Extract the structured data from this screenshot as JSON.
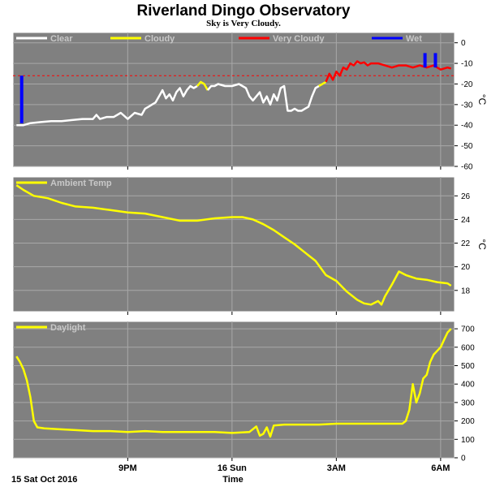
{
  "header": {
    "title": "Riverland Dingo Observatory",
    "subtitle": "Sky is Very Cloudy."
  },
  "footer": {
    "date_label": "15 Sat Oct 2016",
    "time_label": "Time"
  },
  "colors": {
    "plot_bg": "#808080",
    "grid": "#a8a8a8",
    "clear": "#ffffff",
    "cloudy": "#ffff00",
    "very_cloudy": "#ff0000",
    "wet": "#0000ff",
    "line": "#ffff00",
    "threshold": "#ff0000"
  },
  "chart_data": [
    {
      "type": "line",
      "name": "sky",
      "xlabel": "Time",
      "ylabel": "°C",
      "ylim": [
        -60,
        5
      ],
      "yticks": [
        0,
        -10,
        -20,
        -30,
        -40,
        -50,
        -60
      ],
      "xlim": [
        17.7,
        30.4
      ],
      "xticks": [
        {
          "x": 21,
          "label": "9PM"
        },
        {
          "x": 24,
          "label": "16 Sun"
        },
        {
          "x": 27,
          "label": "3AM"
        },
        {
          "x": 30,
          "label": "6AM"
        }
      ],
      "grid": true,
      "legend_position": "top-left",
      "threshold": -16,
      "legend": [
        "Clear",
        "Cloudy",
        "Very Cloudy",
        "Wet"
      ],
      "series": [
        {
          "name": "Clear",
          "color_key": "clear",
          "x": [
            17.8,
            18.0,
            18.2,
            18.5,
            18.8,
            19.1,
            19.4,
            19.7,
            20.0,
            20.1,
            20.2,
            20.4,
            20.6,
            20.8,
            21.0,
            21.2,
            21.4,
            21.5,
            21.6,
            21.7,
            21.8,
            21.9,
            22.0,
            22.1,
            22.2,
            22.3,
            22.4,
            22.5,
            22.6,
            22.7,
            22.8,
            22.9,
            23.0
          ],
          "y": [
            -40,
            -40,
            -39,
            -38.5,
            -38,
            -38,
            -37.5,
            -37,
            -37,
            -35,
            -37,
            -36,
            -36,
            -34,
            -37,
            -34,
            -35,
            -32,
            -31,
            -30,
            -29,
            -26,
            -23,
            -27,
            -25,
            -28,
            -24,
            -22,
            -26,
            -23,
            -21,
            -22,
            -21
          ]
        },
        {
          "name": "Cloudy",
          "color_key": "cloudy",
          "x": [
            23.0,
            23.1,
            23.2,
            23.3
          ],
          "y": [
            -21,
            -19,
            -20,
            -23
          ]
        },
        {
          "name": "Clear",
          "color_key": "clear",
          "x": [
            23.3,
            23.4,
            23.5,
            23.6,
            23.8,
            24.0,
            24.2,
            24.4,
            24.5,
            24.6,
            24.8,
            24.9,
            25.0,
            25.1,
            25.2,
            25.3,
            25.4,
            25.5,
            25.6,
            25.7,
            25.8,
            25.9,
            26.0,
            26.1,
            26.2,
            26.3,
            26.4,
            26.5
          ],
          "y": [
            -23,
            -21,
            -21,
            -20,
            -21,
            -21,
            -20,
            -22,
            -26,
            -28,
            -24,
            -29,
            -26,
            -30,
            -25,
            -28,
            -22,
            -21,
            -33,
            -33,
            -32,
            -33,
            -33,
            -32,
            -31,
            -26,
            -22,
            -21
          ]
        },
        {
          "name": "Cloudy",
          "color_key": "cloudy",
          "x": [
            26.5,
            26.6,
            26.7
          ],
          "y": [
            -21,
            -20,
            -19
          ]
        },
        {
          "name": "Very Cloudy",
          "color_key": "very_cloudy",
          "x": [
            26.7,
            26.8,
            26.9,
            27.0,
            27.1,
            27.2,
            27.3,
            27.4,
            27.5,
            27.6,
            27.7,
            27.8,
            27.9,
            28.0,
            28.2,
            28.4,
            28.6,
            28.8,
            29.0,
            29.2,
            29.4,
            29.6,
            29.8,
            30.0,
            30.2,
            30.3
          ],
          "y": [
            -19,
            -15,
            -18,
            -14,
            -16,
            -12,
            -13,
            -10,
            -11,
            -9,
            -10,
            -9.5,
            -11,
            -10,
            -10,
            -11,
            -12,
            -11,
            -11,
            -12,
            -11,
            -12,
            -11,
            -13,
            -12,
            -12.5
          ]
        },
        {
          "name": "Wet",
          "color_key": "wet",
          "bars": [
            {
              "x": 17.95,
              "y0": -39,
              "y1": -16
            },
            {
              "x": 29.55,
              "y0": -12,
              "y1": -5
            },
            {
              "x": 29.85,
              "y0": -12,
              "y1": -5
            }
          ]
        }
      ]
    },
    {
      "type": "line",
      "name": "ambient",
      "xlabel": "Time",
      "ylabel": "°C",
      "ylim": [
        16.2,
        27.6
      ],
      "yticks": [
        18,
        20,
        22,
        24,
        26
      ],
      "xlim": [
        17.7,
        30.4
      ],
      "xticks": [
        {
          "x": 21,
          "label": "9PM"
        },
        {
          "x": 24,
          "label": "16 Sun"
        },
        {
          "x": 27,
          "label": "3AM"
        },
        {
          "x": 30,
          "label": "6AM"
        }
      ],
      "grid": true,
      "legend_position": "top-left",
      "legend": [
        "Ambient Temp"
      ],
      "series": [
        {
          "name": "Ambient Temp",
          "color_key": "line",
          "x": [
            17.8,
            18.0,
            18.3,
            18.7,
            19.1,
            19.5,
            20.0,
            20.5,
            21.0,
            21.5,
            22.0,
            22.5,
            23.0,
            23.5,
            24.0,
            24.3,
            24.6,
            24.9,
            25.2,
            25.5,
            25.8,
            26.1,
            26.4,
            26.7,
            27.0,
            27.3,
            27.6,
            27.8,
            28.0,
            28.2,
            28.3,
            28.4,
            28.6,
            28.8,
            29.0,
            29.3,
            29.6,
            29.9,
            30.2,
            30.3
          ],
          "y": [
            26.9,
            26.5,
            26.0,
            25.8,
            25.4,
            25.1,
            25.0,
            24.8,
            24.6,
            24.5,
            24.2,
            23.9,
            23.9,
            24.1,
            24.2,
            24.2,
            24.0,
            23.6,
            23.1,
            22.5,
            21.9,
            21.2,
            20.5,
            19.3,
            18.8,
            17.9,
            17.2,
            16.9,
            16.8,
            17.1,
            16.8,
            17.5,
            18.5,
            19.6,
            19.3,
            19.0,
            18.9,
            18.7,
            18.6,
            18.4
          ]
        }
      ]
    },
    {
      "type": "line",
      "name": "daylight",
      "xlabel": "Time",
      "ylabel": "",
      "ylim": [
        0,
        740
      ],
      "yticks": [
        0,
        100,
        200,
        300,
        400,
        500,
        600,
        700
      ],
      "xlim": [
        17.7,
        30.4
      ],
      "xticks": [
        {
          "x": 21,
          "label": "9PM"
        },
        {
          "x": 24,
          "label": "16 Sun"
        },
        {
          "x": 27,
          "label": "3AM"
        },
        {
          "x": 30,
          "label": "6AM"
        }
      ],
      "grid": true,
      "legend_position": "top-left",
      "legend": [
        "Daylight"
      ],
      "series": [
        {
          "name": "Daylight",
          "color_key": "line",
          "x": [
            17.8,
            17.9,
            18.0,
            18.1,
            18.2,
            18.3,
            18.4,
            18.6,
            19.0,
            19.5,
            20.0,
            20.5,
            21.0,
            21.5,
            22.0,
            22.5,
            23.0,
            23.5,
            24.0,
            24.5,
            24.7,
            24.8,
            24.9,
            25.0,
            25.1,
            25.2,
            25.5,
            26.0,
            26.5,
            27.0,
            27.5,
            28.0,
            28.5,
            28.9,
            29.0,
            29.1,
            29.2,
            29.3,
            29.4,
            29.5,
            29.6,
            29.7,
            29.8,
            29.9,
            30.0,
            30.1,
            30.2,
            30.3
          ],
          "y": [
            550,
            520,
            480,
            420,
            330,
            200,
            165,
            160,
            155,
            150,
            145,
            145,
            140,
            145,
            140,
            140,
            140,
            140,
            135,
            140,
            170,
            120,
            130,
            165,
            115,
            175,
            180,
            180,
            180,
            185,
            185,
            185,
            185,
            185,
            200,
            260,
            400,
            300,
            350,
            430,
            450,
            520,
            560,
            580,
            600,
            640,
            680,
            700
          ]
        }
      ]
    }
  ]
}
